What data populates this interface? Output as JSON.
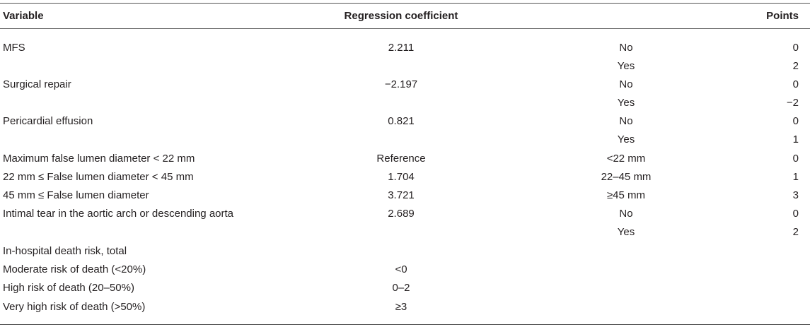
{
  "table": {
    "headers": {
      "variable": "Variable",
      "coefficient": "Regression coefficient",
      "category": "",
      "points": "Points"
    },
    "rows": [
      {
        "variable": "MFS",
        "coefficient": "2.211",
        "category": "No",
        "points": "0"
      },
      {
        "variable": "",
        "coefficient": "",
        "category": "Yes",
        "points": "2"
      },
      {
        "variable": "Surgical repair",
        "coefficient": "−2.197",
        "category": "No",
        "points": "0"
      },
      {
        "variable": "",
        "coefficient": "",
        "category": "Yes",
        "points": "−2"
      },
      {
        "variable": "Pericardial effusion",
        "coefficient": "0.821",
        "category": "No",
        "points": "0"
      },
      {
        "variable": "",
        "coefficient": "",
        "category": "Yes",
        "points": "1"
      },
      {
        "variable": "Maximum false lumen diameter < 22 mm",
        "coefficient": "Reference",
        "category": "<22 mm",
        "points": "0"
      },
      {
        "variable": "22 mm ≤ False lumen diameter < 45 mm",
        "coefficient": "1.704",
        "category": "22–45 mm",
        "points": "1"
      },
      {
        "variable": "45 mm ≤ False lumen diameter",
        "coefficient": "3.721",
        "category": "≥45 mm",
        "points": "3"
      },
      {
        "variable": "Intimal tear in the aortic arch or descending aorta",
        "coefficient": "2.689",
        "category": "No",
        "points": "0"
      },
      {
        "variable": "",
        "coefficient": "",
        "category": "Yes",
        "points": "2"
      },
      {
        "variable": "In-hospital death risk, total",
        "coefficient": "",
        "category": "",
        "points": ""
      },
      {
        "variable": "Moderate risk of death (<20%)",
        "coefficient": "<0",
        "category": "",
        "points": ""
      },
      {
        "variable": "High risk of death (20–50%)",
        "coefficient": "0–2",
        "category": "",
        "points": ""
      },
      {
        "variable": "Very high risk of death (>50%)",
        "coefficient": "≥3",
        "category": "",
        "points": ""
      }
    ]
  }
}
